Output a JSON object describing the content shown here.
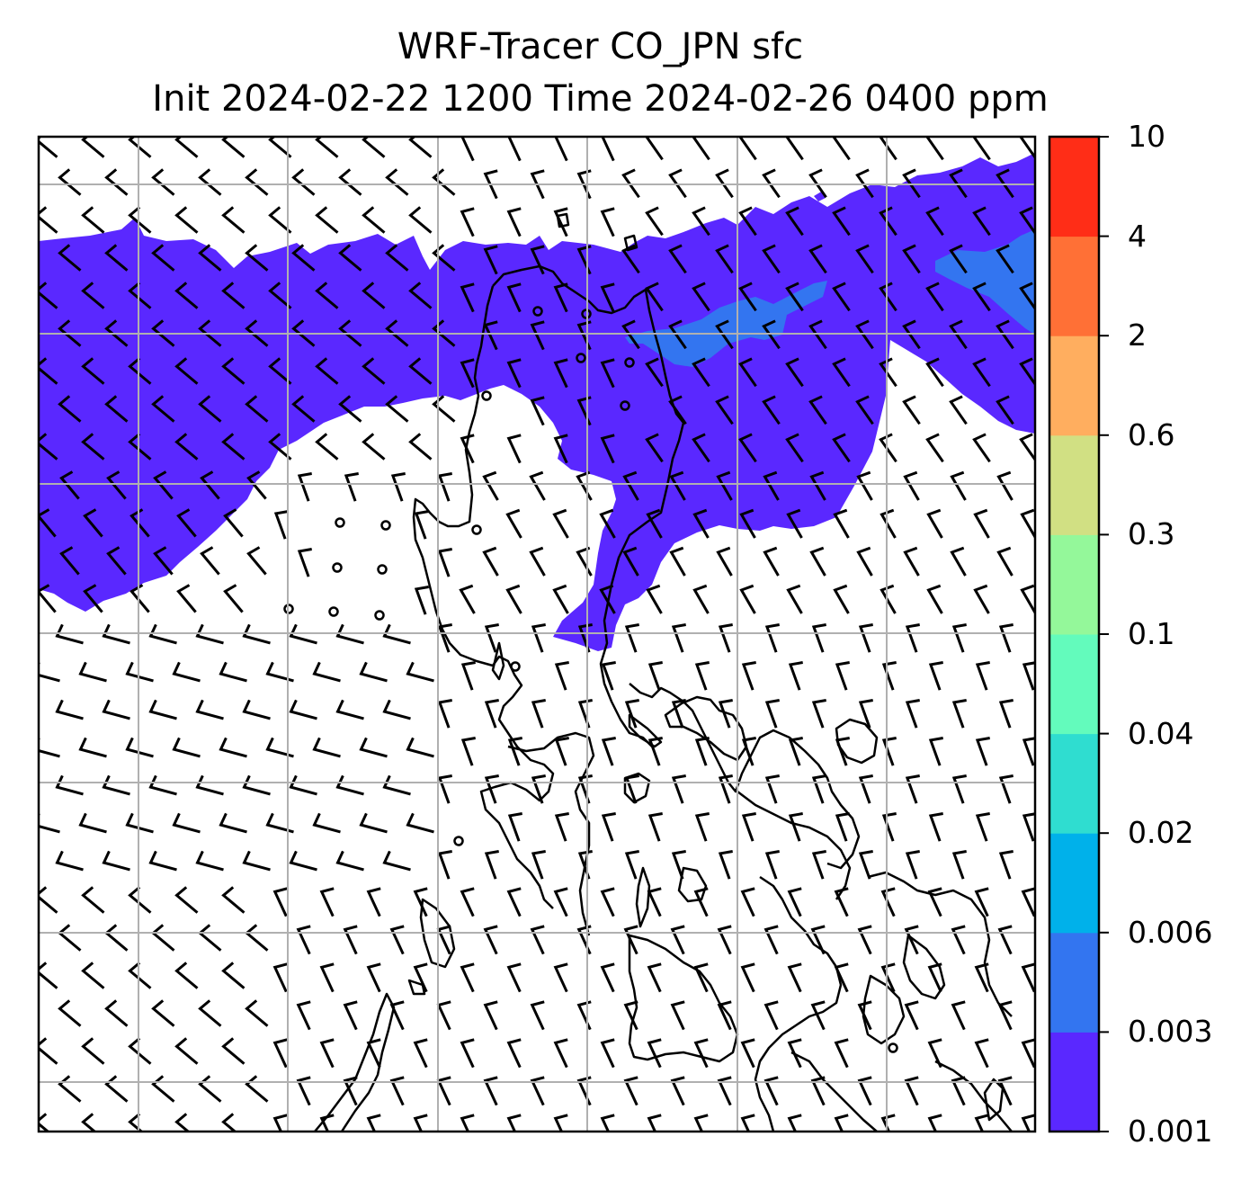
{
  "title": {
    "line1": "WRF-Tracer CO_JPN sfc",
    "line2": "Init 2024-02-22 1200 Time 2024-02-26 0400 ppm"
  },
  "map": {
    "field": "CO tracer concentration (surface)",
    "overlay": "wind barbs",
    "gridlines": true
  },
  "colorbar": {
    "levels": [
      "0.001",
      "0.003",
      "0.006",
      "0.02",
      "0.04",
      "0.1",
      "0.3",
      "0.6",
      "2",
      "4",
      "10"
    ],
    "colors": [
      "#5a28ff",
      "#3375f0",
      "#00b1ea",
      "#2fddd0",
      "#63fbbc",
      "#94f89a",
      "#d1e083",
      "#ffae5f",
      "#ff7036",
      "#ff2d17"
    ]
  }
}
